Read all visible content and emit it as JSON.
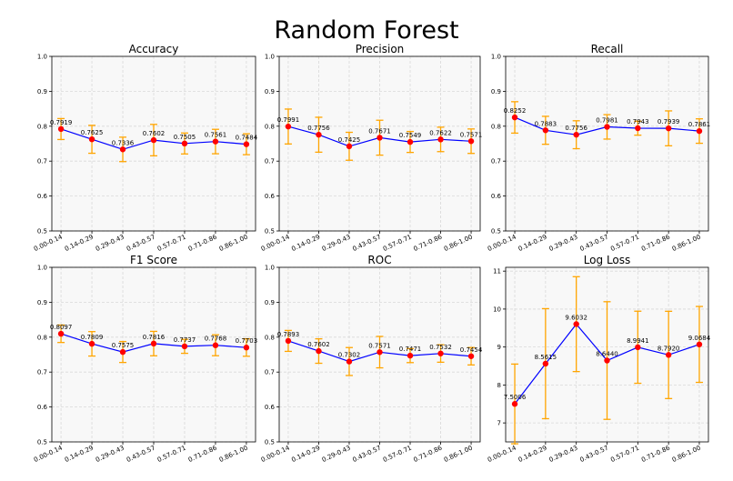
{
  "figure": {
    "title": "Random Forest",
    "colors": {
      "line": "#0000ff",
      "marker": "#ff0000",
      "error": "#ffa500",
      "grid": "#d9d9d9",
      "panel_bg": "#f8f8f8"
    }
  },
  "chart_data": [
    {
      "type": "line",
      "title": "Accuracy",
      "categories": [
        "0.00-0.14",
        "0.14-0.29",
        "0.29-0.43",
        "0.43-0.57",
        "0.57-0.71",
        "0.71-0.86",
        "0.86-1.00"
      ],
      "values": [
        0.7919,
        0.7625,
        0.7336,
        0.7602,
        0.7505,
        0.7561,
        0.7484
      ],
      "labels": [
        "0.7919",
        "0.7625",
        "0.7336",
        "0.7602",
        "0.7505",
        "0.7561",
        "0.7484"
      ],
      "errors": [
        0.03,
        0.04,
        0.035,
        0.045,
        0.03,
        0.035,
        0.03
      ],
      "ylim": [
        0.5,
        1.0
      ],
      "yticks": [
        "0.5",
        "0.6",
        "0.7",
        "0.8",
        "0.9",
        "1.0"
      ],
      "grid": true
    },
    {
      "type": "line",
      "title": "Precision",
      "categories": [
        "0.00-0.14",
        "0.14-0.29",
        "0.29-0.43",
        "0.43-0.57",
        "0.57-0.71",
        "0.71-0.86",
        "0.86-1.00"
      ],
      "values": [
        0.7991,
        0.7756,
        0.7425,
        0.7671,
        0.7549,
        0.7622,
        0.7571
      ],
      "labels": [
        "0.7991",
        "0.7756",
        "0.7425",
        "0.7671",
        "0.7549",
        "0.7622",
        "0.7571"
      ],
      "errors": [
        0.05,
        0.05,
        0.04,
        0.05,
        0.03,
        0.035,
        0.035
      ],
      "ylim": [
        0.5,
        1.0
      ],
      "yticks": [
        "0.5",
        "0.6",
        "0.7",
        "0.8",
        "0.9",
        "1.0"
      ],
      "grid": true
    },
    {
      "type": "line",
      "title": "Recall",
      "categories": [
        "0.00-0.14",
        "0.14-0.29",
        "0.29-0.43",
        "0.43-0.57",
        "0.57-0.71",
        "0.71-0.86",
        "0.86-1.00"
      ],
      "values": [
        0.8252,
        0.7883,
        0.7756,
        0.7981,
        0.7943,
        0.7939,
        0.7861
      ],
      "labels": [
        "0.8252",
        "0.7883",
        "0.7756",
        "0.7981",
        "0.7943",
        "0.7939",
        "0.7861"
      ],
      "errors": [
        0.045,
        0.04,
        0.04,
        0.035,
        0.02,
        0.05,
        0.035
      ],
      "ylim": [
        0.5,
        1.0
      ],
      "yticks": [
        "0.5",
        "0.6",
        "0.7",
        "0.8",
        "0.9",
        "1.0"
      ],
      "grid": true
    },
    {
      "type": "line",
      "title": "F1 Score",
      "categories": [
        "0.00-0.14",
        "0.14-0.29",
        "0.29-0.43",
        "0.43-0.57",
        "0.57-0.71",
        "0.71-0.86",
        "0.86-1.00"
      ],
      "values": [
        0.8097,
        0.7809,
        0.7575,
        0.7816,
        0.7737,
        0.7768,
        0.7703
      ],
      "labels": [
        "0.8097",
        "0.7809",
        "0.7575",
        "0.7816",
        "0.7737",
        "0.7768",
        "0.7703"
      ],
      "errors": [
        0.025,
        0.035,
        0.03,
        0.035,
        0.02,
        0.03,
        0.025
      ],
      "ylim": [
        0.5,
        1.0
      ],
      "yticks": [
        "0.5",
        "0.6",
        "0.7",
        "0.8",
        "0.9",
        "1.0"
      ],
      "grid": true
    },
    {
      "type": "line",
      "title": "ROC",
      "categories": [
        "0.00-0.14",
        "0.14-0.29",
        "0.29-0.43",
        "0.43-0.57",
        "0.57-0.71",
        "0.71-0.86",
        "0.86-1.00"
      ],
      "values": [
        0.7893,
        0.7602,
        0.7302,
        0.7571,
        0.7471,
        0.7532,
        0.7454
      ],
      "labels": [
        "0.7893",
        "0.7602",
        "0.7302",
        "0.7571",
        "0.7471",
        "0.7532",
        "0.7454"
      ],
      "errors": [
        0.03,
        0.035,
        0.04,
        0.045,
        0.02,
        0.025,
        0.025
      ],
      "ylim": [
        0.5,
        1.0
      ],
      "yticks": [
        "0.5",
        "0.6",
        "0.7",
        "0.8",
        "0.9",
        "1.0"
      ],
      "grid": true
    },
    {
      "type": "line",
      "title": "Log Loss",
      "categories": [
        "0.00-0.14",
        "0.14-0.29",
        "0.29-0.43",
        "0.43-0.57",
        "0.57-0.71",
        "0.71-0.86",
        "0.86-1.00"
      ],
      "values": [
        7.5006,
        8.5615,
        9.6032,
        8.644,
        8.9941,
        8.792,
        9.0684
      ],
      "labels": [
        "7.5006",
        "8.5615",
        "9.6032",
        "8.6440",
        "8.9941",
        "8.7920",
        "9.0684"
      ],
      "errors": [
        1.05,
        1.45,
        1.25,
        1.55,
        0.95,
        1.15,
        1.0
      ],
      "ylim": [
        6.5,
        11.1
      ],
      "yticks_values": [
        7,
        8,
        9,
        10,
        11
      ],
      "yticks": [
        "7",
        "8",
        "9",
        "10",
        "11"
      ],
      "grid": true
    }
  ]
}
